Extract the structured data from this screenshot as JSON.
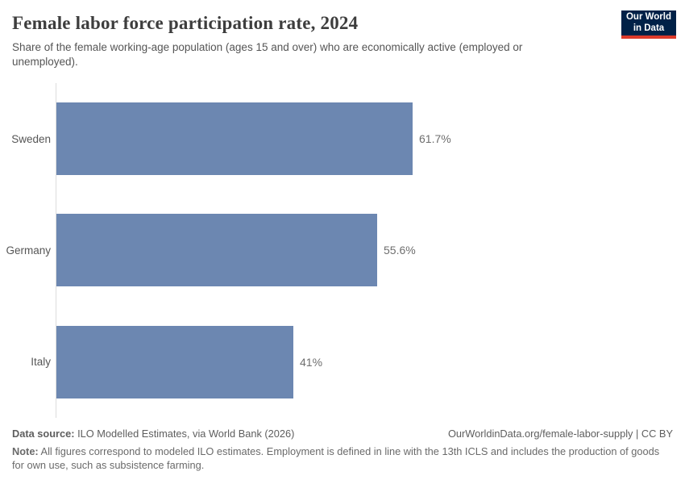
{
  "header": {
    "title": "Female labor force participation rate, 2024",
    "subtitle": "Share of the female working-age population (ages 15 and over) who are economically active (employed or unemployed).",
    "logo": {
      "line1": "Our World",
      "line2": "in Data",
      "bg_color": "#002147",
      "accent_color": "#dc3a2b"
    }
  },
  "chart_data": {
    "type": "bar",
    "orientation": "horizontal",
    "title": "Female labor force participation rate, 2024",
    "categories": [
      "Sweden",
      "Germany",
      "Italy"
    ],
    "values": [
      61.7,
      55.6,
      41
    ],
    "value_labels": [
      "61.7%",
      "55.6%",
      "41%"
    ],
    "unit": "%",
    "xlabel": "",
    "ylabel": "",
    "xlim": [
      0,
      100
    ],
    "grid": false,
    "legend": false,
    "bar_color": "#6c87b1",
    "axis_color": "#dcdcdc"
  },
  "footer": {
    "source_label": "Data source:",
    "source_text": " ILO Modelled Estimates, via World Bank (2026)",
    "link_text": "OurWorldinData.org/female-labor-supply | CC BY",
    "note_label": "Note:",
    "note_text": " All figures correspond to modeled ILO estimates. Employment is defined in line with the 13th ICLS and includes the production of goods for own use, such as subsistence farming."
  }
}
